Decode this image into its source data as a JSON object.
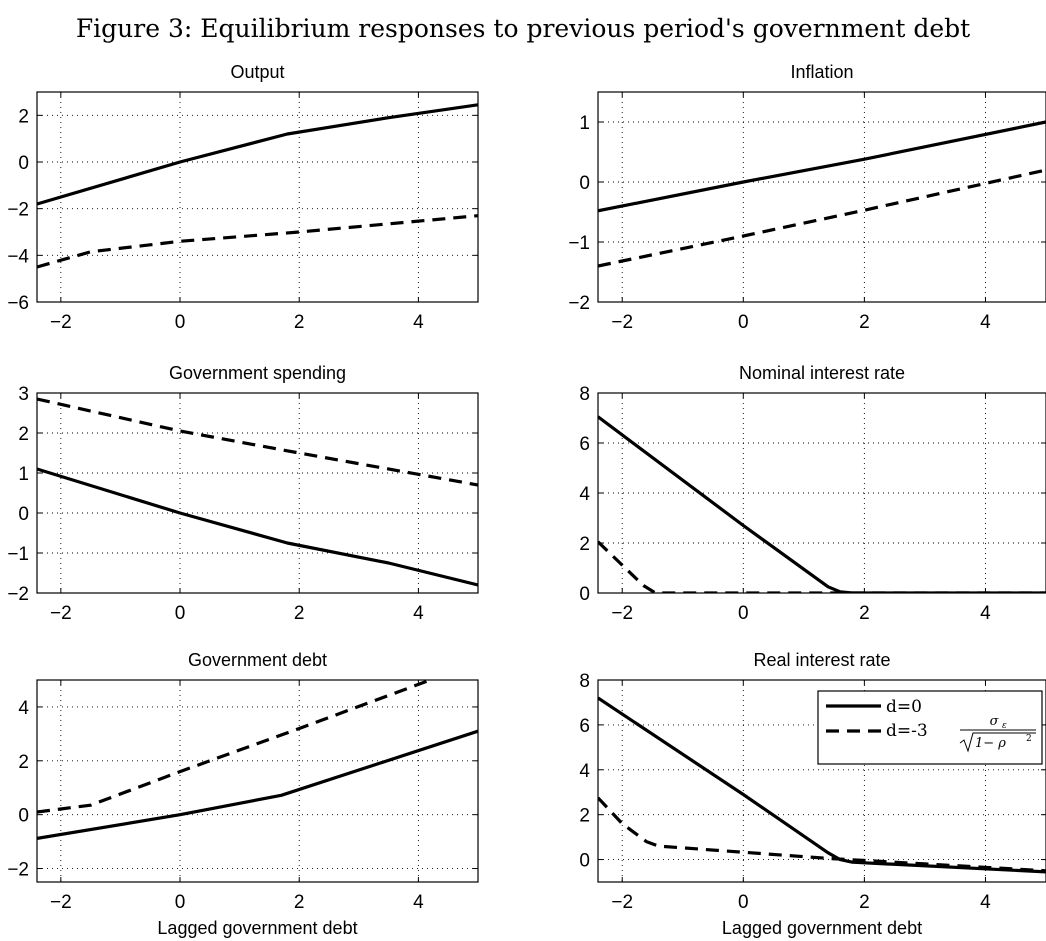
{
  "figure_title": "Figure 3: Equilibrium responses to previous period's government debt",
  "legend": {
    "entries": [
      {
        "label": "d=0",
        "style": "solid"
      },
      {
        "label": "d=-3",
        "style": "dashed",
        "math_numerator": "σ",
        "math_subscript": "ε",
        "math_denominator": "1− ρ",
        "math_exponent": "2"
      }
    ]
  },
  "chart_data": [
    {
      "type": "line",
      "title": "Output",
      "xlabel": "",
      "xlim": [
        -2.4,
        5
      ],
      "ylim": [
        -6,
        3
      ],
      "xticks": [
        -2,
        0,
        2,
        4
      ],
      "yticks": [
        -6,
        -4,
        -2,
        0,
        2
      ],
      "grid": true,
      "series": [
        {
          "style": "solid",
          "x": [
            -2.4,
            0,
            1.8,
            3.5,
            5
          ],
          "y": [
            -1.8,
            0,
            1.2,
            1.9,
            2.45
          ]
        },
        {
          "style": "dashed",
          "x": [
            -2.4,
            -1.5,
            0,
            2,
            5
          ],
          "y": [
            -4.5,
            -3.85,
            -3.4,
            -3.0,
            -2.3
          ]
        }
      ]
    },
    {
      "type": "line",
      "title": "Inflation",
      "xlabel": "",
      "xlim": [
        -2.4,
        5
      ],
      "ylim": [
        -2,
        1.5
      ],
      "xticks": [
        -2,
        0,
        2,
        4
      ],
      "yticks": [
        -2,
        -1,
        0,
        1
      ],
      "grid": true,
      "series": [
        {
          "style": "solid",
          "x": [
            -2.4,
            0,
            2,
            5
          ],
          "y": [
            -0.48,
            0,
            0.38,
            1.0
          ]
        },
        {
          "style": "dashed",
          "x": [
            -2.4,
            0,
            2,
            5
          ],
          "y": [
            -1.4,
            -0.9,
            -0.47,
            0.2
          ]
        }
      ]
    },
    {
      "type": "line",
      "title": "Government spending",
      "xlabel": "",
      "xlim": [
        -2.4,
        5
      ],
      "ylim": [
        -2,
        3
      ],
      "xticks": [
        -2,
        0,
        2,
        4
      ],
      "yticks": [
        -2,
        -1,
        0,
        1,
        2,
        3
      ],
      "grid": true,
      "series": [
        {
          "style": "solid",
          "x": [
            -2.4,
            0,
            1.8,
            3.5,
            5
          ],
          "y": [
            1.1,
            0,
            -0.75,
            -1.25,
            -1.8
          ]
        },
        {
          "style": "dashed",
          "x": [
            -2.4,
            0,
            2,
            5
          ],
          "y": [
            2.85,
            2.05,
            1.5,
            0.7
          ]
        }
      ]
    },
    {
      "type": "line",
      "title": "Nominal interest rate",
      "xlabel": "",
      "xlim": [
        -2.4,
        5
      ],
      "ylim": [
        0,
        8
      ],
      "xticks": [
        -2,
        0,
        2,
        4
      ],
      "yticks": [
        0,
        2,
        4,
        6,
        8
      ],
      "grid": true,
      "series": [
        {
          "style": "solid",
          "x": [
            -2.4,
            0,
            1.4,
            1.6,
            1.8,
            5
          ],
          "y": [
            7.05,
            2.7,
            0.25,
            0.05,
            0,
            0
          ]
        },
        {
          "style": "dashed",
          "x": [
            -2.4,
            -1.95,
            -1.65,
            -1.45,
            5
          ],
          "y": [
            2.05,
            1.0,
            0.3,
            0,
            0
          ]
        }
      ]
    },
    {
      "type": "line",
      "title": "Government debt",
      "xlabel": "Lagged government debt",
      "xlim": [
        -2.4,
        5
      ],
      "ylim": [
        -2.5,
        5
      ],
      "xticks": [
        -2,
        0,
        2,
        4
      ],
      "yticks": [
        -2,
        0,
        2,
        4
      ],
      "grid": true,
      "series": [
        {
          "style": "solid",
          "x": [
            -2.4,
            0,
            1.7,
            5
          ],
          "y": [
            -0.88,
            0,
            0.72,
            3.1
          ]
        },
        {
          "style": "dashed",
          "x": [
            -2.4,
            -1.5,
            0,
            2,
            4.2
          ],
          "y": [
            0.1,
            0.35,
            1.6,
            3.2,
            5.0
          ]
        }
      ]
    },
    {
      "type": "line",
      "title": "Real interest rate",
      "xlabel": "Lagged government debt",
      "xlim": [
        -2.4,
        5
      ],
      "ylim": [
        -1,
        8
      ],
      "xticks": [
        -2,
        0,
        2,
        4
      ],
      "yticks": [
        0,
        2,
        4,
        6,
        8
      ],
      "grid": true,
      "series": [
        {
          "style": "solid",
          "x": [
            -2.4,
            0,
            1.4,
            1.6,
            1.8,
            5
          ],
          "y": [
            7.2,
            2.9,
            0.3,
            0,
            -0.12,
            -0.55
          ]
        },
        {
          "style": "dashed",
          "x": [
            -2.4,
            -2.0,
            -1.6,
            -1.4,
            1.4,
            5
          ],
          "y": [
            2.75,
            1.6,
            0.8,
            0.6,
            0.05,
            -0.5
          ]
        }
      ]
    }
  ]
}
